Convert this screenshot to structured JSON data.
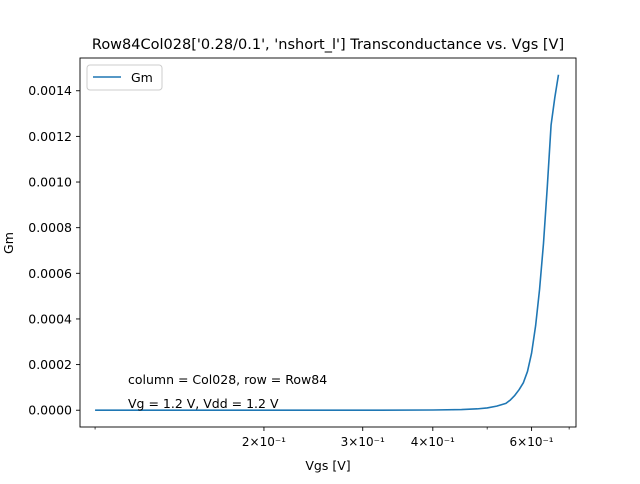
{
  "chart_data": {
    "type": "line",
    "title": "Row84Col028['0.28/0.1', 'nshort_l'] Transconductance vs. Vgs [V]",
    "xlabel": "Vgs [V]",
    "ylabel": "Gm",
    "xscale": "log",
    "xlim": [
      0.094,
      0.72
    ],
    "ylim": [
      -7.35e-05,
      0.0015435
    ],
    "grid": false,
    "legend": {
      "location": "upper-left",
      "entries": [
        "Gm"
      ]
    },
    "x_ticks": [
      {
        "value": 0.2,
        "label": "2×10⁻¹"
      },
      {
        "value": 0.3,
        "label": "3×10⁻¹"
      },
      {
        "value": 0.4,
        "label": "4×10⁻¹"
      },
      {
        "value": 0.6,
        "label": "6×10⁻¹"
      }
    ],
    "x_minor_ticks": [
      0.1,
      0.5,
      0.7
    ],
    "y_ticks": [
      {
        "value": 0.0,
        "label": "0.0000"
      },
      {
        "value": 0.0002,
        "label": "0.0002"
      },
      {
        "value": 0.0004,
        "label": "0.0004"
      },
      {
        "value": 0.0006,
        "label": "0.0006"
      },
      {
        "value": 0.0008,
        "label": "0.0008"
      },
      {
        "value": 0.001,
        "label": "0.0010"
      },
      {
        "value": 0.0012,
        "label": "0.0012"
      },
      {
        "value": 0.0014,
        "label": "0.0014"
      }
    ],
    "annotations": [
      "column = Col028, row = Row84",
      "Vg = 1.2 V, Vdd = 1.2 V"
    ],
    "series": [
      {
        "name": "Gm",
        "color": "#1f77b4",
        "x": [
          0.1,
          0.2,
          0.3,
          0.4,
          0.45,
          0.48,
          0.5,
          0.52,
          0.54,
          0.55,
          0.56,
          0.57,
          0.58,
          0.59,
          0.6,
          0.61,
          0.62,
          0.63,
          0.64,
          0.65,
          0.66,
          0.665,
          0.67
        ],
        "y": [
          0.0,
          0.0,
          0.0,
          1e-06,
          3e-06,
          6e-06,
          1e-05,
          1.8e-05,
          3e-05,
          4.5e-05,
          6.5e-05,
          9e-05,
          0.00012,
          0.00017,
          0.00025,
          0.00037,
          0.00053,
          0.00073,
          0.00098,
          0.00125,
          0.00137,
          0.00142,
          0.00147
        ]
      }
    ]
  }
}
